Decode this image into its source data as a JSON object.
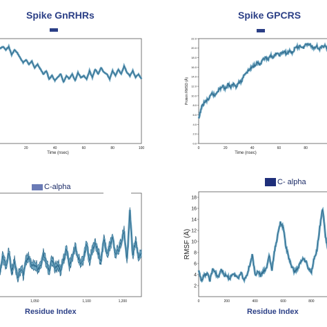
{
  "colors": {
    "title": "#2b3f86",
    "series_line": "#2f6b8d",
    "series_fill": "#6ea5c0",
    "legend_tl": "#2b3f86",
    "legend_bl": "#6a7bb6",
    "legend_br": "#1f2f7a"
  },
  "panels": {
    "tl": {
      "title": "Spike GnRHRs",
      "xlabel": "Time (nsec)"
    },
    "tr": {
      "title": "Spike GPCRS",
      "xlabel": "Time (nsec)",
      "ylabel": "Protein RMSD (Å)"
    },
    "bl": {
      "legend": "C-alpha",
      "xlabel": "Residue Index"
    },
    "br": {
      "legend": "C- alpha",
      "xlabel": "Residue Index",
      "ylabel": "RMSF (Å)"
    }
  },
  "chart_data": [
    {
      "type": "line",
      "title": "Spike GnRHRs",
      "xlabel": "Time (nsec)",
      "ylabel": "",
      "xlim": [
        0,
        100
      ],
      "xticks": [
        "20",
        "40",
        "60",
        "80",
        "100"
      ],
      "x": [
        0,
        2,
        4,
        6,
        8,
        10,
        12,
        14,
        16,
        18,
        20,
        22,
        24,
        26,
        28,
        30,
        32,
        34,
        36,
        38,
        40,
        42,
        44,
        46,
        48,
        50,
        52,
        54,
        56,
        58,
        60,
        62,
        64,
        66,
        68,
        70,
        72,
        74,
        76,
        78,
        80,
        82,
        84,
        86,
        88,
        90,
        92,
        94,
        96,
        98,
        100
      ],
      "values": [
        6.0,
        5.9,
        6.0,
        5.8,
        6.0,
        5.5,
        5.8,
        5.6,
        5.3,
        5.0,
        5.2,
        4.9,
        5.1,
        4.7,
        4.9,
        4.6,
        4.3,
        4.5,
        4.0,
        4.2,
        3.9,
        4.1,
        4.3,
        3.8,
        4.2,
        4.0,
        4.3,
        3.9,
        4.4,
        4.1,
        4.2,
        4.0,
        4.5,
        4.1,
        4.6,
        4.3,
        4.7,
        4.4,
        4.3,
        4.0,
        4.5,
        4.2,
        4.6,
        4.3,
        4.8,
        4.4,
        4.2,
        4.5,
        4.1,
        4.3,
        4.0
      ],
      "ylim": [
        0,
        6.5
      ]
    },
    {
      "type": "line",
      "title": "Spike GPCRS",
      "xlabel": "Time (nsec)",
      "ylabel": "Protein RMSD (Å)",
      "xlim": [
        0,
        100
      ],
      "ylim": [
        0,
        22
      ],
      "xticks": [
        "0",
        "20",
        "40",
        "60",
        "80"
      ],
      "yticks": [
        "0.0",
        "2.0",
        "4.0",
        "6.0",
        "8.0",
        "10.0",
        "12.0",
        "14.0",
        "16.0",
        "18.0",
        "20.0",
        "22.0"
      ],
      "x": [
        0,
        2,
        4,
        6,
        8,
        10,
        12,
        14,
        16,
        18,
        20,
        22,
        24,
        26,
        28,
        30,
        32,
        34,
        36,
        38,
        40,
        42,
        44,
        46,
        48,
        50,
        52,
        54,
        56,
        58,
        60,
        62,
        64,
        66,
        68,
        70,
        72,
        74,
        76,
        78,
        80,
        82,
        84,
        86,
        88,
        90,
        92,
        94,
        96,
        98,
        100
      ],
      "values": [
        5.0,
        7.5,
        8.5,
        9.0,
        9.5,
        10.5,
        10.0,
        11.0,
        11.5,
        12.0,
        11.5,
        12.5,
        11.8,
        12.5,
        12.0,
        12.8,
        13.0,
        14.5,
        15.0,
        15.5,
        16.0,
        16.5,
        17.0,
        16.5,
        17.5,
        18.0,
        17.5,
        18.5,
        18.0,
        19.0,
        18.5,
        19.0,
        19.2,
        18.8,
        19.5,
        19.0,
        20.0,
        20.2,
        20.5,
        20.0,
        20.8,
        21.0,
        20.5,
        20.0,
        20.5,
        19.8,
        20.2,
        20.6,
        19.9,
        20.4,
        20.1
      ]
    },
    {
      "type": "line",
      "title": "",
      "legend": [
        "C-alpha"
      ],
      "xlabel": "Residue Index",
      "ylabel": "",
      "xlim": [
        0,
        1000
      ],
      "ylim": [
        0,
        10
      ],
      "xticks": [
        "1,050",
        "1,100",
        "1,200"
      ],
      "x": [
        0,
        20,
        40,
        60,
        80,
        100,
        120,
        140,
        160,
        180,
        200,
        220,
        240,
        260,
        280,
        300,
        320,
        340,
        360,
        380,
        400,
        420,
        440,
        460,
        480,
        500,
        520,
        540,
        560,
        580,
        600,
        620,
        640,
        660,
        680,
        700,
        720,
        740,
        760,
        780,
        800,
        820,
        840,
        860,
        880,
        900,
        920,
        940,
        960,
        980,
        1000
      ],
      "values": [
        3.0,
        2.5,
        4.0,
        2.8,
        4.3,
        2.5,
        3.5,
        1.8,
        2.6,
        2.2,
        3.4,
        3.8,
        2.8,
        3.2,
        2.6,
        3.0,
        4.2,
        3.3,
        2.5,
        3.6,
        2.6,
        3.1,
        2.4,
        3.5,
        4.6,
        2.9,
        3.8,
        4.8,
        3.9,
        3.0,
        3.7,
        5.1,
        3.5,
        4.3,
        5.3,
        4.2,
        3.5,
        5.6,
        4.0,
        4.8,
        5.8,
        4.1,
        4.5,
        5.2,
        6.3,
        3.5,
        8.2,
        4.0,
        5.4,
        3.8,
        4.2
      ]
    },
    {
      "type": "line",
      "title": "",
      "legend": [
        "C- alpha"
      ],
      "xlabel": "Residue Index",
      "ylabel": "RMSF (Å)",
      "xlim": [
        0,
        950
      ],
      "ylim": [
        0,
        19
      ],
      "xticks": [
        "0",
        "200",
        "400",
        "600",
        "800"
      ],
      "yticks": [
        "2",
        "4",
        "6",
        "8",
        "10",
        "12",
        "14",
        "16",
        "18"
      ],
      "x": [
        0,
        20,
        40,
        60,
        80,
        100,
        120,
        140,
        160,
        180,
        200,
        220,
        240,
        260,
        280,
        300,
        320,
        340,
        360,
        380,
        400,
        420,
        440,
        460,
        480,
        500,
        520,
        540,
        560,
        580,
        600,
        620,
        640,
        660,
        680,
        700,
        720,
        740,
        760,
        780,
        800,
        820,
        840,
        860,
        880,
        900,
        920,
        940
      ],
      "values": [
        4.5,
        3.0,
        3.8,
        4.2,
        3.0,
        5.0,
        4.2,
        3.5,
        5.0,
        4.0,
        3.6,
        3.3,
        4.2,
        3.8,
        3.4,
        4.5,
        3.0,
        3.8,
        5.5,
        7.5,
        4.0,
        4.5,
        3.8,
        4.5,
        5.0,
        7.5,
        4.8,
        8.5,
        11.0,
        13.5,
        12.5,
        9.0,
        7.0,
        5.5,
        4.5,
        5.0,
        6.0,
        7.0,
        6.5,
        5.0,
        4.5,
        7.0,
        8.5,
        12.5,
        16.0,
        11.0,
        8.0,
        5.5
      ]
    }
  ]
}
